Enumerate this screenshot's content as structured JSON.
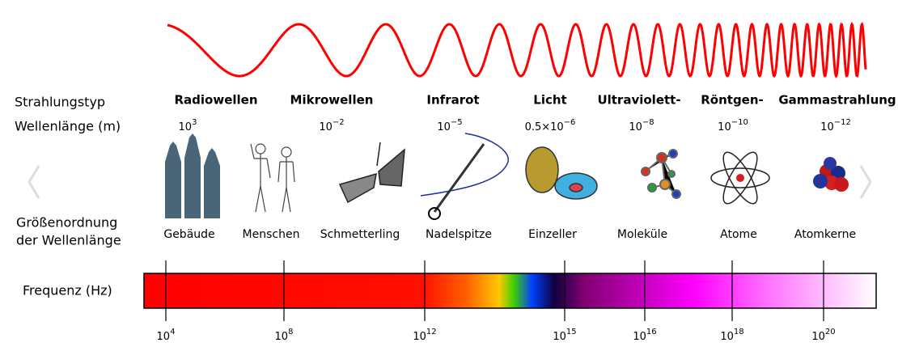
{
  "row_labels": {
    "type": "Strahlungstyp",
    "wavelength": "Wellenlänge (m)",
    "scale": [
      "Größenordnung",
      "der Wellenlänge"
    ],
    "frequency": "Frequenz (Hz)"
  },
  "columns": [
    {
      "type": "Radiowellen",
      "wavelength": {
        "base": "10",
        "exp": "3"
      }
    },
    {
      "type": "Mikrowellen",
      "wavelength": {
        "base": "10",
        "exp": "−2"
      }
    },
    {
      "type": "Infrarot",
      "wavelength": {
        "base": "10",
        "exp": "−5"
      }
    },
    {
      "type": "Licht",
      "wavelength": {
        "base": "0.5×10",
        "exp": "−6"
      }
    },
    {
      "type": "Ultraviolett-",
      "wavelength": {
        "base": "10",
        "exp": "−8"
      }
    },
    {
      "type": "Röntgen-",
      "wavelength": {
        "base": "10",
        "exp": "−10"
      }
    },
    {
      "type": "Gammastrahlung",
      "wavelength": {
        "base": "10",
        "exp": "−12"
      }
    }
  ],
  "examples": [
    "Gebäude",
    "Menschen",
    "Schmetterling",
    "Nadelspitze",
    "Einzeller",
    "Moleküle",
    "Atome",
    "Atomkerne"
  ],
  "frequency_ticks": [
    {
      "base": "10",
      "exp": "4"
    },
    {
      "base": "10",
      "exp": "8"
    },
    {
      "base": "10",
      "exp": "12"
    },
    {
      "base": "10",
      "exp": "15"
    },
    {
      "base": "10",
      "exp": "16"
    },
    {
      "base": "10",
      "exp": "18"
    },
    {
      "base": "10",
      "exp": "20"
    }
  ]
}
